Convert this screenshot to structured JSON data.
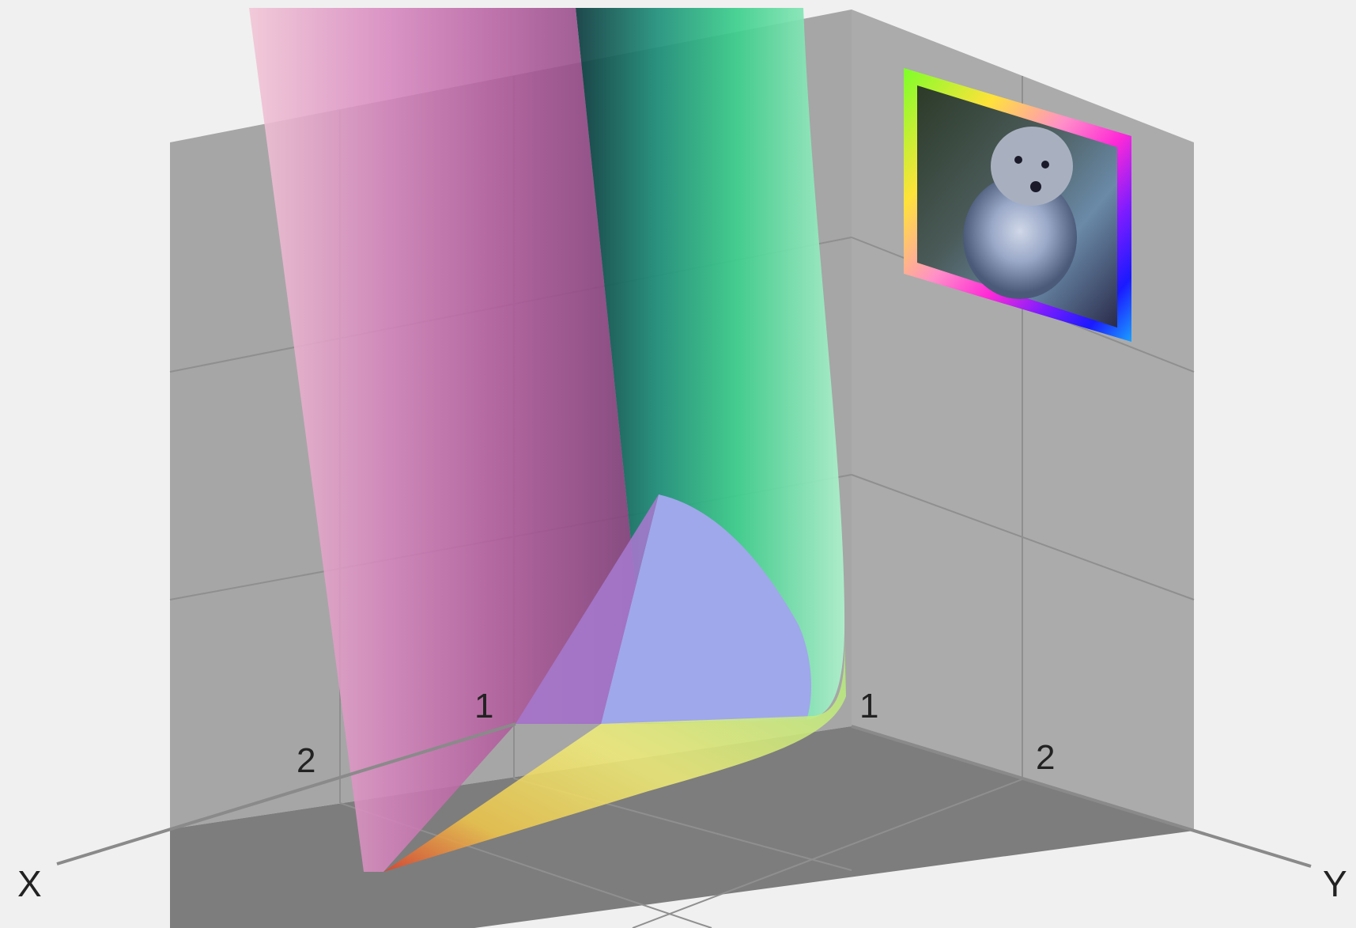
{
  "axes": {
    "x_label": "X",
    "y_label": "Y",
    "x_ticks": [
      "1",
      "2"
    ],
    "y_ticks": [
      "1",
      "2"
    ]
  },
  "inset": {
    "subject": "dog photograph",
    "frame_gradient": [
      "#7cff2a",
      "#ffe23a",
      "#ff8fc8",
      "#ff2ad6",
      "#7a1cff",
      "#1a1aff",
      "#1aa0ff",
      "#1ae0a0"
    ]
  },
  "surfaces": {
    "magenta_plane": "#b0589a",
    "green_surface": "#3ccf8c",
    "lavender_patch": "#9fa8ea",
    "yellow_band": "#f2e85a"
  },
  "colors": {
    "background": "#f0f0f0",
    "floor": "#7d7d7d",
    "left_wall": "#a6a6a6",
    "right_wall": "#ababab",
    "grid": "#8f8f8f",
    "axis_line": "#8a8a8a"
  }
}
